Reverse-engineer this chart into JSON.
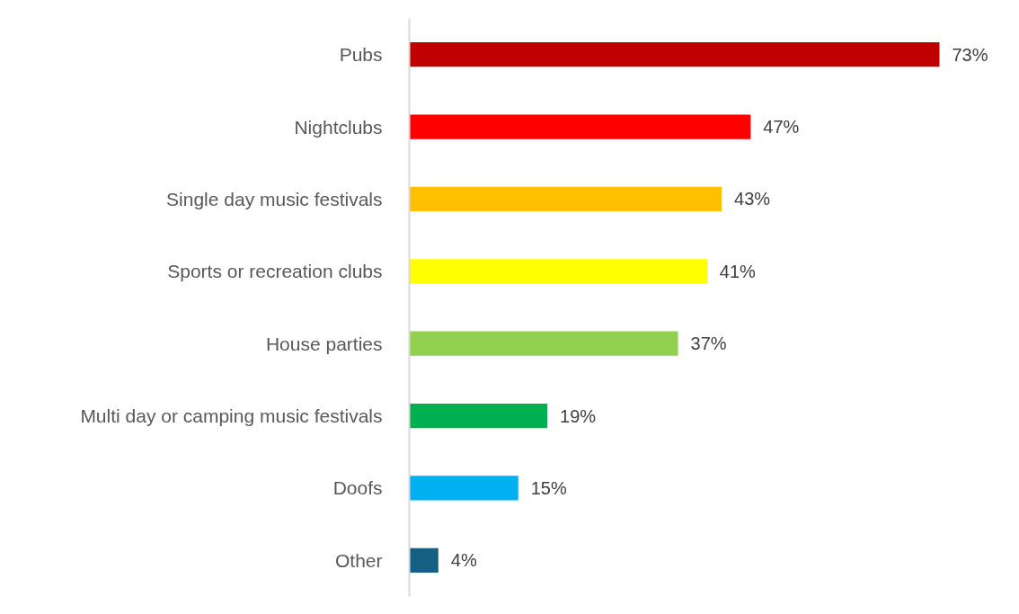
{
  "chart_data": {
    "type": "bar",
    "orientation": "horizontal",
    "categories": [
      "Pubs",
      "Nightclubs",
      "Single day music festivals",
      "Sports or recreation clubs",
      "House parties",
      "Multi day or camping music festivals",
      "Doofs",
      "Other"
    ],
    "values": [
      73,
      47,
      43,
      41,
      37,
      19,
      15,
      4
    ],
    "colors": [
      "#c00000",
      "#ff0000",
      "#ffc000",
      "#ffff00",
      "#92d050",
      "#00b050",
      "#00b0f0",
      "#156082"
    ],
    "value_labels": [
      "73%",
      "47%",
      "43%",
      "41%",
      "37%",
      "19%",
      "15%",
      "4%"
    ]
  }
}
